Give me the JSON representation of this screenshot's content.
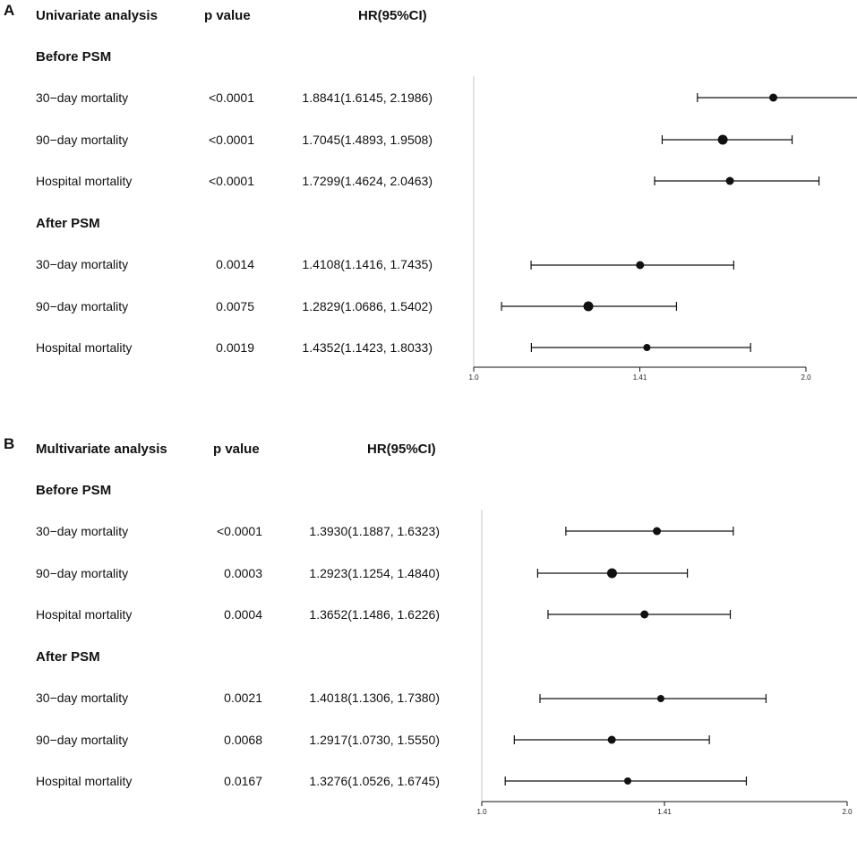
{
  "colors": {
    "ink": "#111111",
    "reference_line": "#cfcfcf",
    "marker": "#111111"
  },
  "chart_data": [
    {
      "type": "forest",
      "panel_label": "A",
      "headers": {
        "analysis": "Univariate analysis",
        "p": "p value",
        "hr": "HR(95%CI)"
      },
      "x_ticks": [
        1.0,
        1.41,
        2.0
      ],
      "x_tick_labels": [
        "1.0",
        "1.41",
        "2.0"
      ],
      "xlim": [
        1.0,
        2.0
      ],
      "reference": 1.0,
      "groups": [
        {
          "label": "Before PSM",
          "rows": [
            {
              "label": "30−day mortality",
              "p": "<0.0001",
              "hr_text": "1.8841(1.6145, 2.1986)",
              "hr": 1.8841,
              "lo": 1.6145,
              "hi": 2.1986
            },
            {
              "label": "90−day mortality",
              "p": "<0.0001",
              "hr_text": "1.7045(1.4893, 1.9508)",
              "hr": 1.7045,
              "lo": 1.4893,
              "hi": 1.9508
            },
            {
              "label": "Hospital mortality",
              "p": "<0.0001",
              "hr_text": "1.7299(1.4624, 2.0463)",
              "hr": 1.7299,
              "lo": 1.4624,
              "hi": 2.0463
            }
          ]
        },
        {
          "label": "After PSM",
          "rows": [
            {
              "label": "30−day mortality",
              "p": "0.0014",
              "hr_text": "1.4108(1.1416, 1.7435)",
              "hr": 1.4108,
              "lo": 1.1416,
              "hi": 1.7435
            },
            {
              "label": "90−day mortality",
              "p": "0.0075",
              "hr_text": "1.2829(1.0686, 1.5402)",
              "hr": 1.2829,
              "lo": 1.0686,
              "hi": 1.5402
            },
            {
              "label": "Hospital mortality",
              "p": "0.0019",
              "hr_text": "1.4352(1.1423, 1.8033)",
              "hr": 1.4352,
              "lo": 1.1423,
              "hi": 1.8033
            }
          ]
        }
      ]
    },
    {
      "type": "forest",
      "panel_label": "B",
      "headers": {
        "analysis": "Multivariate analysis",
        "p": "p value",
        "hr": "HR(95%CI)"
      },
      "x_ticks": [
        1.0,
        1.41,
        2.0
      ],
      "x_tick_labels": [
        "1.0",
        "1.41",
        "2.0"
      ],
      "xlim": [
        1.0,
        2.0
      ],
      "reference": 1.0,
      "groups": [
        {
          "label": "Before PSM",
          "rows": [
            {
              "label": "30−day mortality",
              "p": "<0.0001",
              "hr_text": "1.3930(1.1887, 1.6323)",
              "hr": 1.393,
              "lo": 1.1887,
              "hi": 1.6323
            },
            {
              "label": "90−day mortality",
              "p": "0.0003",
              "hr_text": "1.2923(1.1254, 1.4840)",
              "hr": 1.2923,
              "lo": 1.1254,
              "hi": 1.484
            },
            {
              "label": "Hospital mortality",
              "p": "0.0004",
              "hr_text": "1.3652(1.1486, 1.6226)",
              "hr": 1.3652,
              "lo": 1.1486,
              "hi": 1.6226
            }
          ]
        },
        {
          "label": "After PSM",
          "rows": [
            {
              "label": "30−day mortality",
              "p": "0.0021",
              "hr_text": "1.4018(1.1306, 1.7380)",
              "hr": 1.4018,
              "lo": 1.1306,
              "hi": 1.738
            },
            {
              "label": "90−day mortality",
              "p": "0.0068",
              "hr_text": "1.2917(1.0730, 1.5550)",
              "hr": 1.2917,
              "lo": 1.073,
              "hi": 1.555
            },
            {
              "label": "Hospital mortality",
              "p": "0.0167",
              "hr_text": "1.3276(1.0526, 1.6745)",
              "hr": 1.3276,
              "lo": 1.0526,
              "hi": 1.6745
            }
          ]
        }
      ]
    }
  ]
}
